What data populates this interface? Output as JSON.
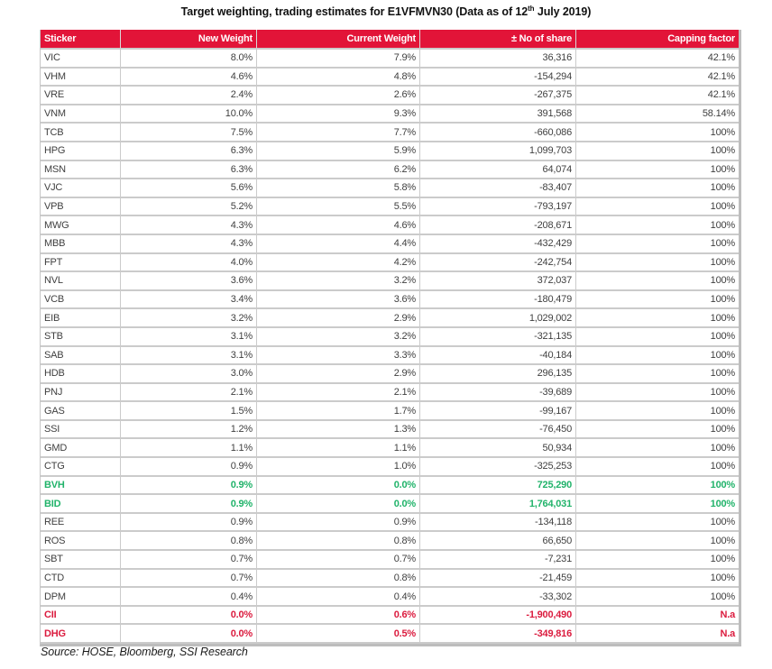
{
  "title": {
    "prefix": "Target weighting, trading estimates for E1VFMVN30 (Data as of 12",
    "superscript": "th",
    "suffix": " July 2019)"
  },
  "source": "Source: HOSE, Bloomberg, SSI Research",
  "colors": {
    "header_bg": "#e21438",
    "positive_text": "#21b36a",
    "negative_text": "#db1b3e",
    "body_text": "#3f3f3f"
  },
  "table": {
    "columns": [
      {
        "label": "Sticker",
        "align": "left"
      },
      {
        "label": "New Weight",
        "align": "right"
      },
      {
        "label": "Current Weight",
        "align": "right"
      },
      {
        "label": "± No of share",
        "align": "right"
      },
      {
        "label": "Capping factor",
        "align": "right"
      }
    ],
    "rows": [
      {
        "sticker": "VIC",
        "new_weight": "8.0%",
        "current_weight": "7.9%",
        "no_of_share": "36,316",
        "capping_factor": "42.1%",
        "highlight": "none"
      },
      {
        "sticker": "VHM",
        "new_weight": "4.6%",
        "current_weight": "4.8%",
        "no_of_share": "-154,294",
        "capping_factor": "42.1%",
        "highlight": "none"
      },
      {
        "sticker": "VRE",
        "new_weight": "2.4%",
        "current_weight": "2.6%",
        "no_of_share": "-267,375",
        "capping_factor": "42.1%",
        "highlight": "none"
      },
      {
        "sticker": "VNM",
        "new_weight": "10.0%",
        "current_weight": "9.3%",
        "no_of_share": "391,568",
        "capping_factor": "58.14%",
        "highlight": "none"
      },
      {
        "sticker": "TCB",
        "new_weight": "7.5%",
        "current_weight": "7.7%",
        "no_of_share": "-660,086",
        "capping_factor": "100%",
        "highlight": "none"
      },
      {
        "sticker": "HPG",
        "new_weight": "6.3%",
        "current_weight": "5.9%",
        "no_of_share": "1,099,703",
        "capping_factor": "100%",
        "highlight": "none"
      },
      {
        "sticker": "MSN",
        "new_weight": "6.3%",
        "current_weight": "6.2%",
        "no_of_share": "64,074",
        "capping_factor": "100%",
        "highlight": "none"
      },
      {
        "sticker": "VJC",
        "new_weight": "5.6%",
        "current_weight": "5.8%",
        "no_of_share": "-83,407",
        "capping_factor": "100%",
        "highlight": "none"
      },
      {
        "sticker": "VPB",
        "new_weight": "5.2%",
        "current_weight": "5.5%",
        "no_of_share": "-793,197",
        "capping_factor": "100%",
        "highlight": "none"
      },
      {
        "sticker": "MWG",
        "new_weight": "4.3%",
        "current_weight": "4.6%",
        "no_of_share": "-208,671",
        "capping_factor": "100%",
        "highlight": "none"
      },
      {
        "sticker": "MBB",
        "new_weight": "4.3%",
        "current_weight": "4.4%",
        "no_of_share": "-432,429",
        "capping_factor": "100%",
        "highlight": "none"
      },
      {
        "sticker": "FPT",
        "new_weight": "4.0%",
        "current_weight": "4.2%",
        "no_of_share": "-242,754",
        "capping_factor": "100%",
        "highlight": "none"
      },
      {
        "sticker": "NVL",
        "new_weight": "3.6%",
        "current_weight": "3.2%",
        "no_of_share": "372,037",
        "capping_factor": "100%",
        "highlight": "none"
      },
      {
        "sticker": "VCB",
        "new_weight": "3.4%",
        "current_weight": "3.6%",
        "no_of_share": "-180,479",
        "capping_factor": "100%",
        "highlight": "none"
      },
      {
        "sticker": "EIB",
        "new_weight": "3.2%",
        "current_weight": "2.9%",
        "no_of_share": "1,029,002",
        "capping_factor": "100%",
        "highlight": "none"
      },
      {
        "sticker": "STB",
        "new_weight": "3.1%",
        "current_weight": "3.2%",
        "no_of_share": "-321,135",
        "capping_factor": "100%",
        "highlight": "none"
      },
      {
        "sticker": "SAB",
        "new_weight": "3.1%",
        "current_weight": "3.3%",
        "no_of_share": "-40,184",
        "capping_factor": "100%",
        "highlight": "none"
      },
      {
        "sticker": "HDB",
        "new_weight": "3.0%",
        "current_weight": "2.9%",
        "no_of_share": "296,135",
        "capping_factor": "100%",
        "highlight": "none"
      },
      {
        "sticker": "PNJ",
        "new_weight": "2.1%",
        "current_weight": "2.1%",
        "no_of_share": "-39,689",
        "capping_factor": "100%",
        "highlight": "none"
      },
      {
        "sticker": "GAS",
        "new_weight": "1.5%",
        "current_weight": "1.7%",
        "no_of_share": "-99,167",
        "capping_factor": "100%",
        "highlight": "none"
      },
      {
        "sticker": "SSI",
        "new_weight": "1.2%",
        "current_weight": "1.3%",
        "no_of_share": "-76,450",
        "capping_factor": "100%",
        "highlight": "none"
      },
      {
        "sticker": "GMD",
        "new_weight": "1.1%",
        "current_weight": "1.1%",
        "no_of_share": "50,934",
        "capping_factor": "100%",
        "highlight": "none"
      },
      {
        "sticker": "CTG",
        "new_weight": "0.9%",
        "current_weight": "1.0%",
        "no_of_share": "-325,253",
        "capping_factor": "100%",
        "highlight": "none"
      },
      {
        "sticker": "BVH",
        "new_weight": "0.9%",
        "current_weight": "0.0%",
        "no_of_share": "725,290",
        "capping_factor": "100%",
        "highlight": "green"
      },
      {
        "sticker": "BID",
        "new_weight": "0.9%",
        "current_weight": "0.0%",
        "no_of_share": "1,764,031",
        "capping_factor": "100%",
        "highlight": "green"
      },
      {
        "sticker": "REE",
        "new_weight": "0.9%",
        "current_weight": "0.9%",
        "no_of_share": "-134,118",
        "capping_factor": "100%",
        "highlight": "none"
      },
      {
        "sticker": "ROS",
        "new_weight": "0.8%",
        "current_weight": "0.8%",
        "no_of_share": "66,650",
        "capping_factor": "100%",
        "highlight": "none"
      },
      {
        "sticker": "SBT",
        "new_weight": "0.7%",
        "current_weight": "0.7%",
        "no_of_share": "-7,231",
        "capping_factor": "100%",
        "highlight": "none"
      },
      {
        "sticker": "CTD",
        "new_weight": "0.7%",
        "current_weight": "0.8%",
        "no_of_share": "-21,459",
        "capping_factor": "100%",
        "highlight": "none"
      },
      {
        "sticker": "DPM",
        "new_weight": "0.4%",
        "current_weight": "0.4%",
        "no_of_share": "-33,302",
        "capping_factor": "100%",
        "highlight": "none"
      },
      {
        "sticker": "CII",
        "new_weight": "0.0%",
        "current_weight": "0.6%",
        "no_of_share": "-1,900,490",
        "capping_factor": "N.a",
        "highlight": "red"
      },
      {
        "sticker": "DHG",
        "new_weight": "0.0%",
        "current_weight": "0.5%",
        "no_of_share": "-349,816",
        "capping_factor": "N.a",
        "highlight": "red"
      }
    ]
  }
}
